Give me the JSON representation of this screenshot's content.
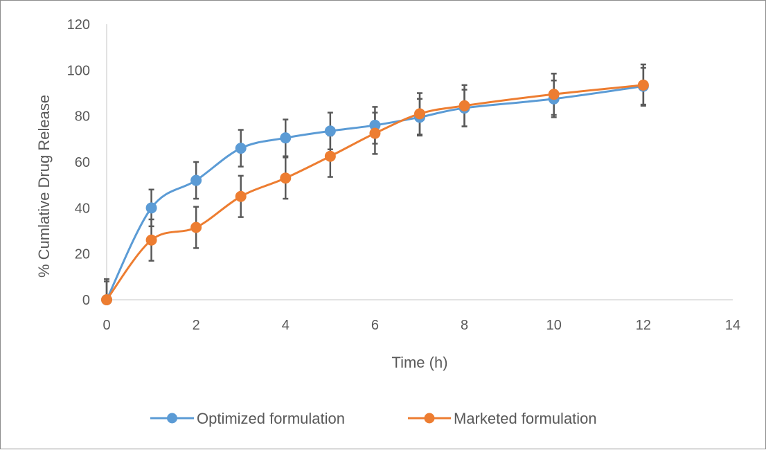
{
  "chart_data": {
    "type": "line",
    "title": "",
    "xlabel": "Time (h)",
    "ylabel": "% Cumlative Drug Release",
    "xlim": [
      0,
      14
    ],
    "ylim": [
      0,
      120
    ],
    "x_ticks": [
      "0",
      "2",
      "4",
      "6",
      "8",
      "10",
      "12",
      "14"
    ],
    "y_ticks": [
      "0",
      "20",
      "40",
      "60",
      "80",
      "100",
      "120"
    ],
    "grid": false,
    "legend_position": "bottom",
    "series": [
      {
        "name": "Optimized formulation",
        "color": "#5b9bd5",
        "x": [
          0,
          1,
          2,
          3,
          4,
          5,
          6,
          7,
          8,
          10,
          12
        ],
        "y": [
          0,
          40,
          52,
          66,
          70.5,
          73.5,
          76,
          79.5,
          83.5,
          87.5,
          93
        ],
        "error": [
          8,
          8,
          8,
          8,
          8,
          8,
          8,
          8,
          8,
          8,
          8
        ]
      },
      {
        "name": "Marketed formulation",
        "color": "#ed7d31",
        "x": [
          0,
          1,
          2,
          3,
          4,
          5,
          6,
          7,
          8,
          10,
          12
        ],
        "y": [
          0,
          26,
          31.5,
          45,
          53,
          62.5,
          72.5,
          81,
          84.5,
          89.5,
          93.5
        ],
        "error": [
          9,
          9,
          9,
          9,
          9,
          9,
          9,
          9,
          9,
          9,
          9
        ]
      }
    ]
  }
}
